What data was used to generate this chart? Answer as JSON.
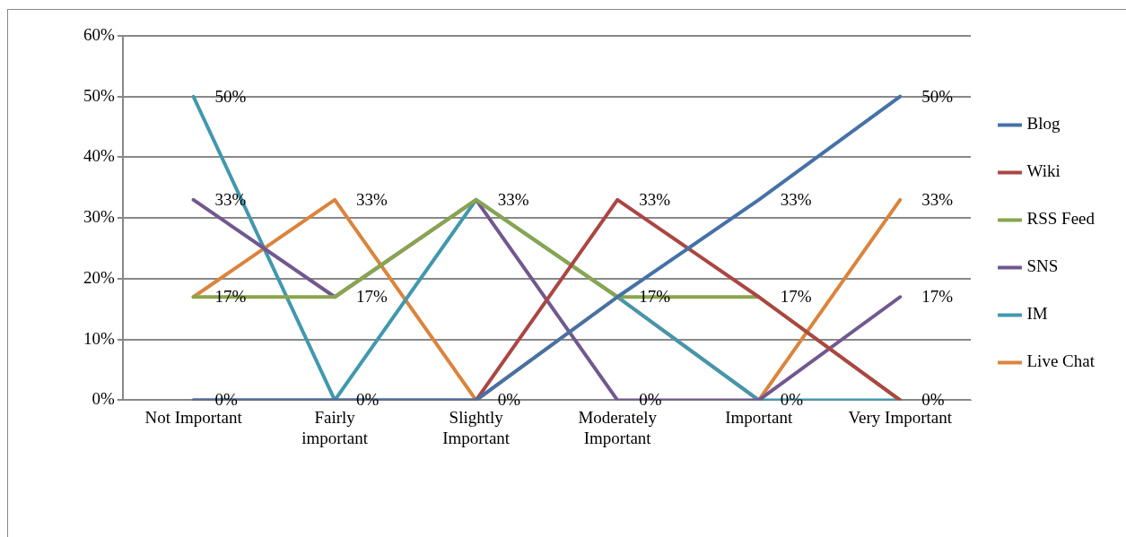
{
  "chart_data": {
    "type": "line",
    "categories": [
      "Not Important",
      "Fairly important",
      "Slightly Important",
      "Moderately Important",
      "Important",
      "Very Important"
    ],
    "series": [
      {
        "name": "Blog",
        "color": "#4572a7",
        "values": [
          0,
          0,
          0,
          17,
          33,
          50
        ],
        "value_labels": [
          null,
          null,
          null,
          null,
          "33%",
          "50%"
        ]
      },
      {
        "name": "Wiki",
        "color": "#aa4643",
        "values": [
          0,
          0,
          0,
          33,
          17,
          0
        ],
        "value_labels": [
          "0%",
          null,
          null,
          "33%",
          null,
          null
        ]
      },
      {
        "name": "RSS Feed",
        "color": "#89a54e",
        "values": [
          17,
          17,
          33,
          17,
          17,
          0
        ],
        "value_labels": [
          null,
          null,
          null,
          null,
          "17%",
          null
        ]
      },
      {
        "name": "SNS",
        "color": "#71588f",
        "values": [
          33,
          17,
          33,
          0,
          0,
          17
        ],
        "value_labels": [
          "33%",
          "17%",
          null,
          "0%",
          null,
          "17%"
        ]
      },
      {
        "name": "IM",
        "color": "#4198af",
        "values": [
          50,
          0,
          33,
          17,
          0,
          0
        ],
        "value_labels": [
          "50%",
          "0%",
          "33%",
          null,
          null,
          "0%"
        ]
      },
      {
        "name": "Live Chat",
        "color": "#db843d",
        "values": [
          17,
          33,
          0,
          17,
          0,
          33
        ],
        "value_labels": [
          "17%",
          "33%",
          "0%",
          "17%",
          "0%",
          "33%"
        ]
      }
    ],
    "ylim": [
      0,
      60
    ],
    "yticks": [
      {
        "value": 0,
        "label": "0%"
      },
      {
        "value": 10,
        "label": "10%"
      },
      {
        "value": 20,
        "label": "20%"
      },
      {
        "value": 30,
        "label": "30%"
      },
      {
        "value": 40,
        "label": "40%"
      },
      {
        "value": 50,
        "label": "50%"
      },
      {
        "value": 60,
        "label": "60%"
      }
    ],
    "grid": "y",
    "legend": "right",
    "marker": "none",
    "line_style": "solid"
  }
}
